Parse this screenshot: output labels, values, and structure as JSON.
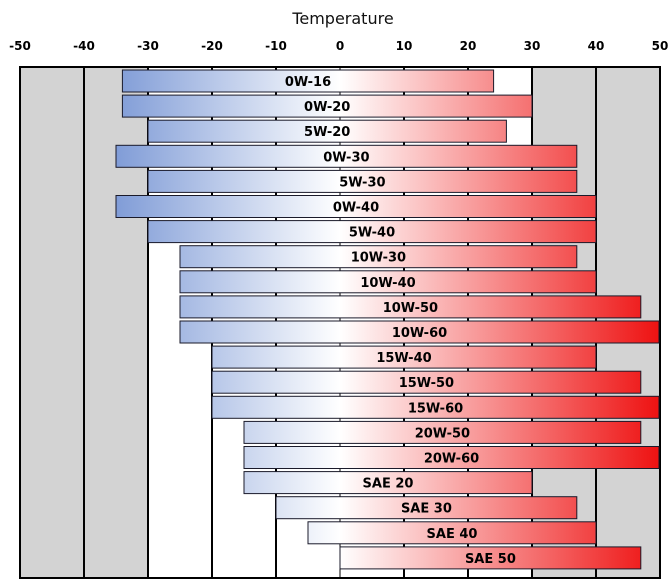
{
  "chart_data": {
    "type": "bar",
    "orientation": "horizontal-range",
    "xlabel": "Temperature",
    "xlim": [
      -50,
      50
    ],
    "xticks": [
      -50,
      -40,
      -30,
      -20,
      -10,
      0,
      10,
      20,
      30,
      40,
      50
    ],
    "grid": true,
    "gradient": {
      "cold": "#4a72c6",
      "mid": "#ffffff",
      "hot": "#ee1111"
    },
    "colors": {
      "band": "#d3d3d3",
      "gridline": "#000000"
    },
    "bars": [
      {
        "label": "0W-16",
        "min": -34,
        "max": 24
      },
      {
        "label": "0W-20",
        "min": -34,
        "max": 30
      },
      {
        "label": "5W-20",
        "min": -30,
        "max": 26
      },
      {
        "label": "0W-30",
        "min": -35,
        "max": 37
      },
      {
        "label": "5W-30",
        "min": -30,
        "max": 37
      },
      {
        "label": "0W-40",
        "min": -35,
        "max": 40
      },
      {
        "label": "5W-40",
        "min": -30,
        "max": 40
      },
      {
        "label": "10W-30",
        "min": -25,
        "max": 37
      },
      {
        "label": "10W-40",
        "min": -25,
        "max": 40
      },
      {
        "label": "10W-50",
        "min": -25,
        "max": 47
      },
      {
        "label": "10W-60",
        "min": -25,
        "max": 50
      },
      {
        "label": "15W-40",
        "min": -20,
        "max": 40
      },
      {
        "label": "15W-50",
        "min": -20,
        "max": 47
      },
      {
        "label": "15W-60",
        "min": -20,
        "max": 50
      },
      {
        "label": "20W-50",
        "min": -15,
        "max": 47
      },
      {
        "label": "20W-60",
        "min": -15,
        "max": 50
      },
      {
        "label": "SAE 20",
        "min": -15,
        "max": 30
      },
      {
        "label": "SAE 30",
        "min": -10,
        "max": 37
      },
      {
        "label": "SAE 40",
        "min": -5,
        "max": 40
      },
      {
        "label": "SAE 50",
        "min": 0,
        "max": 47
      }
    ]
  }
}
